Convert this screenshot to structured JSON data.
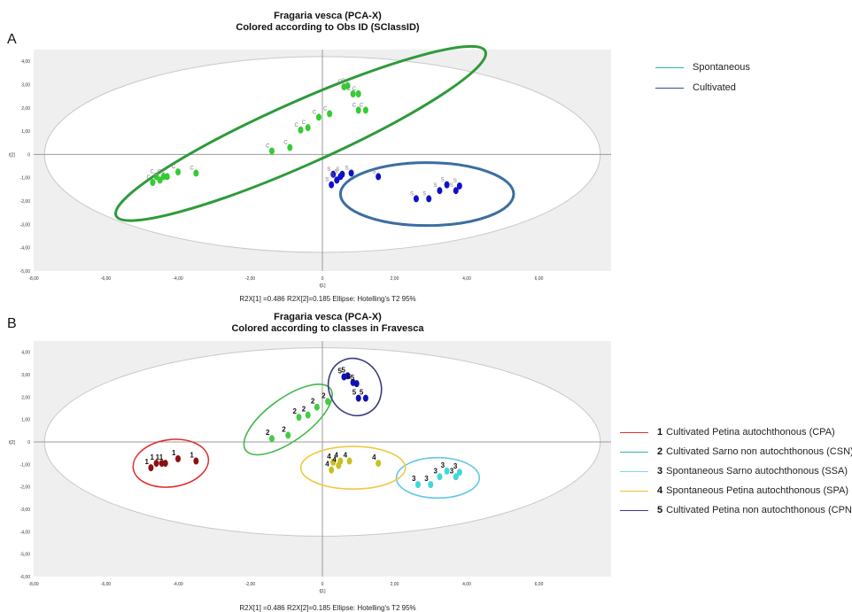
{
  "panelA": {
    "letter": "A",
    "title_line1": "Fragaria vesca (PCA-X)",
    "title_line2": "Colored according to Obs ID (SClassID)",
    "caption": "R2X[1] =0.486 R2X[2]=0.185 Ellipse: Hotelling's T2 95%",
    "legend": [
      {
        "label": "Spontaneous",
        "color": "#2fb9a2"
      },
      {
        "label": "Cultivated",
        "color": "#2f4f8f"
      }
    ]
  },
  "panelB": {
    "letter": "B",
    "title_line1": "Fragaria vesca (PCA-X)",
    "title_line2": "Colored according to classes in Fravesca",
    "caption": "R2X[1] =0.486 R2X[2]=0.185 Ellipse: Hotelling's T2 95%",
    "legend": [
      {
        "num": "1",
        "label": "Cultivated Petina autochthonous (CPA)",
        "color": "#e03030"
      },
      {
        "num": "2",
        "label": "Cultivated Sarno non autochthonous (CSN)",
        "color": "#2fb9a2"
      },
      {
        "num": "3",
        "label": "Spontaneous Sarno autochthonous (SSA)",
        "color": "#7fd6e8"
      },
      {
        "num": "4",
        "label": "Spontaneous Petina autochthonous (SPA)",
        "color": "#e8c02a"
      },
      {
        "num": "5",
        "label": "Cultivated  Petina non autochthonous (CPN)",
        "color": "#3a3aa0"
      }
    ]
  },
  "chart_data": [
    {
      "type": "scatter",
      "title": "Fragaria vesca (PCA-X)",
      "subtitle": "Colored according to Obs ID (SClassID)",
      "xlabel": "t[1]",
      "ylabel": "t[2]",
      "xlim": [
        -8,
        8
      ],
      "ylim": [
        -5,
        4.5
      ],
      "xticks": [
        "-8,00",
        "-6,00",
        "-4,00",
        "-2,00",
        "0",
        "2,00",
        "4,00",
        "6,00"
      ],
      "yticks": [
        "4,00",
        "3,00",
        "2,00",
        "1,00",
        "0",
        "-1,00",
        "-2,00",
        "-3,00",
        "-4,00",
        "-5,00"
      ],
      "hotelling_ellipse": {
        "rx": 7.7,
        "ry": 4.2
      },
      "series": [
        {
          "label": "C",
          "color": "#33cc33",
          "group_ellipse": {
            "cx": -0.6,
            "cy": 0.9,
            "rx": 5.6,
            "ry": 1.35,
            "angle_deg": -24,
            "color": "#2e9a3a"
          },
          "points": [
            [
              -4.7,
              -1.2
            ],
            [
              -4.6,
              -0.95
            ],
            [
              -4.5,
              -1.1
            ],
            [
              -4.4,
              -0.95
            ],
            [
              -4.3,
              -0.95
            ],
            [
              -4.0,
              -0.75
            ],
            [
              -3.5,
              -0.8
            ],
            [
              -1.4,
              0.15
            ],
            [
              -0.9,
              0.3
            ],
            [
              -0.6,
              1.05
            ],
            [
              -0.4,
              1.15
            ],
            [
              -0.1,
              1.6
            ],
            [
              0.2,
              1.75
            ],
            [
              0.6,
              2.9
            ],
            [
              0.7,
              2.95
            ],
            [
              0.85,
              2.6
            ],
            [
              1.0,
              2.6
            ],
            [
              1.0,
              1.9
            ],
            [
              1.2,
              1.9
            ]
          ]
        },
        {
          "label": "S",
          "color": "#1010c8",
          "group_ellipse": {
            "cx": 2.9,
            "cy": -1.7,
            "rx": 2.4,
            "ry": 1.35,
            "angle_deg": 0,
            "color": "#3a6ea0"
          },
          "points": [
            [
              0.25,
              -1.3
            ],
            [
              0.3,
              -0.85
            ],
            [
              0.4,
              -1.1
            ],
            [
              0.5,
              -0.95
            ],
            [
              0.55,
              -0.85
            ],
            [
              0.8,
              -0.8
            ],
            [
              1.55,
              -0.95
            ],
            [
              2.6,
              -1.9
            ],
            [
              2.95,
              -1.9
            ],
            [
              3.25,
              -1.55
            ],
            [
              3.45,
              -1.3
            ],
            [
              3.7,
              -1.55
            ],
            [
              3.8,
              -1.35
            ]
          ]
        }
      ]
    },
    {
      "type": "scatter",
      "title": "Fragaria vesca (PCA-X)",
      "subtitle": "Colored according to classes in Fravesca",
      "xlabel": "t[1]",
      "ylabel": "t[2]",
      "xlim": [
        -8,
        8
      ],
      "ylim": [
        -6,
        4.5
      ],
      "xticks": [
        "-8,00",
        "-6,00",
        "-4,00",
        "-2,00",
        "0",
        "2,00",
        "4,00",
        "6,00"
      ],
      "yticks": [
        "4,00",
        "3,00",
        "2,00",
        "1,00",
        "0",
        "-1,00",
        "-2,00",
        "-3,00",
        "-4,00",
        "-5,00",
        "-6,00"
      ],
      "hotelling_ellipse": {
        "rx": 7.7,
        "ry": 4.2
      },
      "series": [
        {
          "label": "1",
          "color": "#8b1010",
          "group_ellipse": {
            "cx": -4.2,
            "cy": -0.95,
            "rx": 1.05,
            "ry": 1.05,
            "angle_deg": -8,
            "color": "#e03030"
          },
          "points": [
            [
              -4.75,
              -1.15
            ],
            [
              -4.6,
              -0.95
            ],
            [
              -4.45,
              -0.95
            ],
            [
              -4.35,
              -0.95
            ],
            [
              -4.0,
              -0.75
            ],
            [
              -3.5,
              -0.85
            ]
          ]
        },
        {
          "label": "2",
          "color": "#44cc44",
          "group_ellipse": {
            "cx": -0.95,
            "cy": 1.0,
            "rx": 1.45,
            "ry": 0.95,
            "angle_deg": -36,
            "color": "#40b848"
          },
          "points": [
            [
              -1.4,
              0.15
            ],
            [
              -0.95,
              0.3
            ],
            [
              -0.65,
              1.1
            ],
            [
              -0.4,
              1.2
            ],
            [
              -0.15,
              1.55
            ],
            [
              0.15,
              1.8
            ]
          ]
        },
        {
          "label": "3",
          "color": "#40d8d8",
          "group_ellipse": {
            "cx": 3.2,
            "cy": -1.6,
            "rx": 1.15,
            "ry": 0.9,
            "angle_deg": 0,
            "color": "#60c8e8"
          },
          "points": [
            [
              2.65,
              -1.9
            ],
            [
              3.0,
              -1.9
            ],
            [
              3.25,
              -1.55
            ],
            [
              3.45,
              -1.3
            ],
            [
              3.7,
              -1.55
            ],
            [
              3.8,
              -1.35
            ]
          ]
        },
        {
          "label": "4",
          "color": "#c8c020",
          "group_ellipse": {
            "cx": 0.85,
            "cy": -1.15,
            "rx": 1.45,
            "ry": 0.95,
            "angle_deg": 0,
            "color": "#f0c840"
          },
          "points": [
            [
              0.25,
              -1.25
            ],
            [
              0.3,
              -0.9
            ],
            [
              0.45,
              -1.05
            ],
            [
              0.5,
              -0.85
            ],
            [
              0.75,
              -0.85
            ],
            [
              1.55,
              -0.95
            ]
          ]
        },
        {
          "label": "5",
          "color": "#1010b8",
          "group_ellipse": {
            "cx": 0.9,
            "cy": 2.45,
            "rx": 0.72,
            "ry": 1.3,
            "angle_deg": -25,
            "color": "#3a3a80"
          },
          "points": [
            [
              0.6,
              2.9
            ],
            [
              0.7,
              2.95
            ],
            [
              0.85,
              2.65
            ],
            [
              0.95,
              2.6
            ],
            [
              1.0,
              1.95
            ],
            [
              1.2,
              1.95
            ]
          ]
        }
      ]
    }
  ]
}
